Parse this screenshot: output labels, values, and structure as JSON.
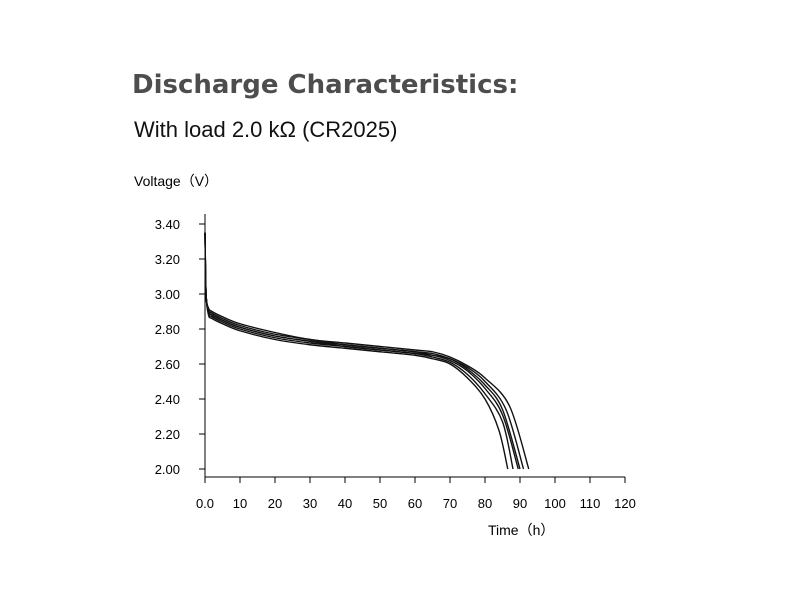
{
  "header": {
    "title": "Discharge Characteristics:",
    "subtitle": "With load 2.0 kΩ (CR2025)"
  },
  "chart_data": {
    "type": "line",
    "title": "",
    "ylabel": "Voltage（V）",
    "xlabel": "Time（h）",
    "xlim": [
      0,
      120
    ],
    "ylim": [
      2.0,
      3.4
    ],
    "grid": false,
    "x_tick_labels": [
      "0.0",
      "10",
      "20",
      "30",
      "40",
      "50",
      "60",
      "70",
      "80",
      "90",
      "100",
      "110",
      "120"
    ],
    "y_tick_labels": [
      "2.00",
      "2.20",
      "2.40",
      "2.60",
      "2.80",
      "3.00",
      "3.20",
      "3.40"
    ],
    "series": [
      {
        "x": [
          0,
          0.3,
          1,
          2,
          5,
          10,
          20,
          30,
          40,
          50,
          60,
          65,
          70,
          75,
          80,
          84,
          86.5
        ],
        "y": [
          3.35,
          3.0,
          2.88,
          2.86,
          2.83,
          2.79,
          2.74,
          2.71,
          2.69,
          2.67,
          2.65,
          2.63,
          2.6,
          2.52,
          2.4,
          2.22,
          2.0
        ]
      },
      {
        "x": [
          0,
          0.3,
          1,
          2,
          5,
          10,
          20,
          30,
          40,
          50,
          60,
          65,
          70,
          75,
          80,
          85,
          88
        ],
        "y": [
          3.35,
          3.0,
          2.89,
          2.87,
          2.84,
          2.8,
          2.75,
          2.72,
          2.7,
          2.68,
          2.66,
          2.64,
          2.61,
          2.54,
          2.43,
          2.27,
          2.0
        ]
      },
      {
        "x": [
          0,
          0.3,
          1,
          2,
          5,
          10,
          20,
          30,
          40,
          50,
          60,
          65,
          70,
          75,
          80,
          85,
          89.5
        ],
        "y": [
          3.35,
          3.0,
          2.9,
          2.88,
          2.85,
          2.81,
          2.76,
          2.73,
          2.7,
          2.68,
          2.66,
          2.65,
          2.62,
          2.56,
          2.46,
          2.31,
          2.0
        ]
      },
      {
        "x": [
          0,
          0.3,
          1,
          2,
          5,
          10,
          20,
          30,
          40,
          50,
          60,
          65,
          70,
          75,
          80,
          85,
          90
        ],
        "y": [
          3.35,
          3.0,
          2.9,
          2.88,
          2.85,
          2.81,
          2.76,
          2.73,
          2.71,
          2.69,
          2.67,
          2.65,
          2.63,
          2.57,
          2.48,
          2.34,
          2.0
        ]
      },
      {
        "x": [
          0,
          0.3,
          1,
          2,
          5,
          10,
          20,
          30,
          40,
          50,
          60,
          65,
          70,
          75,
          80,
          86,
          91
        ],
        "y": [
          3.35,
          3.0,
          2.91,
          2.89,
          2.86,
          2.82,
          2.77,
          2.74,
          2.71,
          2.69,
          2.67,
          2.66,
          2.63,
          2.58,
          2.5,
          2.34,
          2.0
        ]
      },
      {
        "x": [
          0,
          0.3,
          1,
          2,
          5,
          10,
          20,
          30,
          40,
          50,
          60,
          65,
          70,
          75,
          80,
          87,
          92.5
        ],
        "y": [
          3.35,
          3.0,
          2.92,
          2.9,
          2.87,
          2.83,
          2.78,
          2.74,
          2.72,
          2.7,
          2.68,
          2.67,
          2.64,
          2.59,
          2.52,
          2.36,
          2.0
        ]
      }
    ]
  }
}
